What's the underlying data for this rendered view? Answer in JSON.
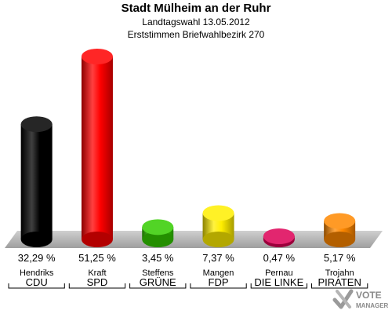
{
  "header": {
    "title": "Stadt Mülheim an der Ruhr",
    "subtitle1": "Landtagswahl 13.05.2012",
    "subtitle2": "Erststimmen Briefwahlbezirk 270"
  },
  "logo": {
    "line1": "VOTE",
    "line2": "MANAGER"
  },
  "chart_data": {
    "type": "bar",
    "title": "Stadt Mülheim an der Ruhr",
    "subtitle": "Landtagswahl 13.05.2012 · Erststimmen Briefwahlbezirk 270",
    "ylim": [
      0,
      51.25
    ],
    "grid": false,
    "candidates": [
      "Hendriks",
      "Kraft",
      "Steffens",
      "Mangen",
      "Pernau",
      "Trojahn"
    ],
    "categories": [
      "CDU",
      "SPD",
      "GRÜNE",
      "FDP",
      "DIE LINKE",
      "PIRATEN"
    ],
    "values": [
      32.29,
      51.25,
      3.45,
      7.37,
      0.47,
      5.17
    ],
    "value_labels": [
      "32,29 %",
      "51,25 %",
      "3,45 %",
      "7,37 %",
      "0,47 %",
      "5,17 %"
    ],
    "colors": [
      "#000000",
      "#ff0000",
      "#33cc00",
      "#ffee00",
      "#dd0055",
      "#ff8800"
    ]
  }
}
